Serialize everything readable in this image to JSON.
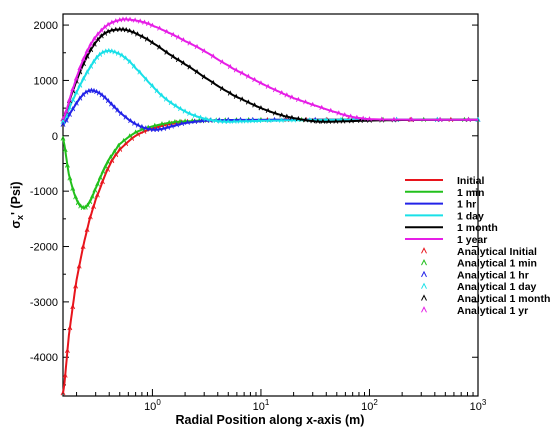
{
  "chart_data": {
    "type": "line",
    "xlabel": "Radial Position along x-axis (m)",
    "ylabel_main": "σ",
    "ylabel_sub": "x",
    "ylabel_rest": "' (Psi)",
    "x_scale": "log",
    "xlim": [
      0.15,
      1000
    ],
    "ylim": [
      -4700,
      2200
    ],
    "x_ticks": [
      {
        "value": 1,
        "base": "10",
        "exp": "0"
      },
      {
        "value": 10,
        "base": "10",
        "exp": "1"
      },
      {
        "value": 100,
        "base": "10",
        "exp": "2"
      },
      {
        "value": 1000,
        "base": "10",
        "exp": "3"
      }
    ],
    "y_ticks": [
      {
        "value": 2000,
        "label": "2000"
      },
      {
        "value": 1000,
        "label": "1000"
      },
      {
        "value": 0,
        "label": "0"
      },
      {
        "value": -1000,
        "label": "-1000"
      },
      {
        "value": -2000,
        "label": "-2000"
      },
      {
        "value": -3000,
        "label": "-3000"
      },
      {
        "value": -4000,
        "label": "-4000"
      }
    ],
    "legend_position": "right",
    "series": [
      {
        "name": "Initial",
        "color": "#e8141c",
        "style": "line",
        "x": [
          0.15,
          0.17,
          0.2,
          0.25,
          0.3,
          0.4,
          0.5,
          0.7,
          1,
          1.5,
          2,
          3,
          5,
          10,
          30,
          100,
          1000
        ],
        "y": [
          -4650,
          -3600,
          -2600,
          -1700,
          -1150,
          -550,
          -250,
          0,
          130,
          220,
          250,
          270,
          280,
          285,
          288,
          290,
          290
        ]
      },
      {
        "name": "1 min",
        "color": "#22c01c",
        "style": "line",
        "x": [
          0.15,
          0.17,
          0.2,
          0.23,
          0.26,
          0.3,
          0.35,
          0.4,
          0.5,
          0.7,
          1,
          1.5,
          2,
          3,
          5,
          10,
          100,
          1000
        ],
        "y": [
          -50,
          -700,
          -1150,
          -1300,
          -1220,
          -950,
          -650,
          -420,
          -150,
          60,
          170,
          240,
          260,
          275,
          282,
          287,
          290,
          290
        ]
      },
      {
        "name": "1 hr",
        "color": "#2323e8",
        "style": "line",
        "x": [
          0.15,
          0.18,
          0.22,
          0.26,
          0.3,
          0.35,
          0.42,
          0.5,
          0.65,
          0.8,
          1,
          1.2,
          1.5,
          2,
          3,
          5,
          10,
          100,
          1000
        ],
        "y": [
          200,
          450,
          700,
          810,
          800,
          720,
          570,
          420,
          250,
          160,
          110,
          120,
          170,
          230,
          270,
          285,
          288,
          290,
          290
        ]
      },
      {
        "name": "1 day",
        "color": "#19e0e8",
        "style": "line",
        "x": [
          0.15,
          0.18,
          0.22,
          0.27,
          0.32,
          0.38,
          0.45,
          0.55,
          0.7,
          1,
          1.3,
          1.7,
          2.2,
          3,
          4,
          5,
          7,
          10,
          20,
          50,
          100,
          1000
        ],
        "y": [
          250,
          600,
          950,
          1250,
          1450,
          1530,
          1510,
          1420,
          1220,
          900,
          680,
          520,
          400,
          310,
          265,
          255,
          262,
          270,
          280,
          287,
          290,
          290
        ]
      },
      {
        "name": "1 month",
        "color": "#000000",
        "style": "line",
        "x": [
          0.15,
          0.18,
          0.22,
          0.27,
          0.33,
          0.4,
          0.5,
          0.6,
          0.75,
          1,
          1.5,
          2,
          3,
          5,
          7,
          10,
          15,
          20,
          30,
          40,
          60,
          100,
          200,
          1000
        ],
        "y": [
          300,
          750,
          1200,
          1550,
          1780,
          1890,
          1920,
          1900,
          1820,
          1680,
          1450,
          1290,
          1060,
          790,
          640,
          500,
          380,
          320,
          265,
          255,
          262,
          275,
          285,
          290
        ]
      },
      {
        "name": "1 year",
        "color": "#e61ee6",
        "style": "line",
        "x": [
          0.15,
          0.18,
          0.22,
          0.27,
          0.33,
          0.4,
          0.5,
          0.6,
          0.8,
          1,
          1.5,
          2,
          3,
          5,
          7,
          10,
          15,
          20,
          30,
          50,
          70,
          100,
          200,
          1000
        ],
        "y": [
          300,
          780,
          1280,
          1650,
          1880,
          2020,
          2090,
          2100,
          2060,
          1990,
          1840,
          1710,
          1530,
          1270,
          1110,
          950,
          790,
          680,
          560,
          420,
          340,
          300,
          292,
          290
        ]
      },
      {
        "name": "Analytical Initial",
        "color": "#e8141c",
        "style": "marker",
        "ref": 0
      },
      {
        "name": "Analytical 1 min",
        "color": "#22c01c",
        "style": "marker",
        "ref": 1
      },
      {
        "name": "Analytical 1 hr",
        "color": "#2323e8",
        "style": "marker",
        "ref": 2
      },
      {
        "name": "Analytical 1 day",
        "color": "#19e0e8",
        "style": "marker",
        "ref": 3
      },
      {
        "name": "Analytical 1 month",
        "color": "#000000",
        "style": "marker",
        "ref": 4
      },
      {
        "name": "Analytical  1 yr",
        "color": "#e61ee6",
        "style": "marker",
        "ref": 5
      }
    ]
  }
}
